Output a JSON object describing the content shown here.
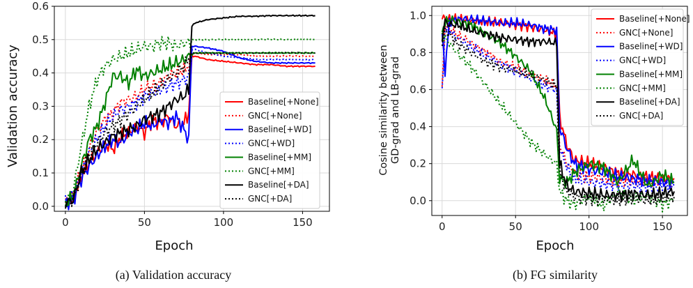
{
  "chart_data": [
    {
      "type": "line",
      "caption": "(a)  Validation accuracy",
      "xlabel": "Epoch",
      "ylabel": "Validation accuracy",
      "xlim": [
        -7,
        167
      ],
      "ylim": [
        -0.015,
        0.6
      ],
      "xticks": [
        0,
        50,
        100,
        150
      ],
      "yticks": [
        0.0,
        0.1,
        0.2,
        0.3,
        0.4,
        0.5,
        0.6
      ],
      "ytick_labels": [
        "0.0",
        "0.1",
        "0.2",
        "0.3",
        "0.4",
        "0.5",
        "0.6"
      ],
      "grid": true,
      "legend_position": "lower-right",
      "series": [
        {
          "name": "Baseline[+None]",
          "color": "#ff0000",
          "style": "solid",
          "final": 0.42,
          "x": [
            0,
            5,
            10,
            15,
            20,
            25,
            30,
            35,
            40,
            45,
            50,
            55,
            60,
            65,
            70,
            75,
            78,
            80,
            82,
            90,
            100,
            110,
            120,
            130,
            140,
            150,
            158
          ],
          "y": [
            0.01,
            0.02,
            0.09,
            0.13,
            0.16,
            0.19,
            0.17,
            0.21,
            0.22,
            0.24,
            0.22,
            0.26,
            0.25,
            0.27,
            0.24,
            0.25,
            0.28,
            0.45,
            0.45,
            0.44,
            0.435,
            0.43,
            0.425,
            0.425,
            0.42,
            0.42,
            0.42
          ]
        },
        {
          "name": "GNC[+None]",
          "color": "#ff0000",
          "style": "dotted",
          "final": 0.45,
          "x": [
            0,
            5,
            10,
            15,
            20,
            25,
            30,
            35,
            40,
            45,
            50,
            55,
            60,
            65,
            70,
            75,
            78,
            80,
            82,
            90,
            100,
            110,
            120,
            130,
            140,
            150,
            158
          ],
          "y": [
            0.01,
            0.03,
            0.11,
            0.17,
            0.23,
            0.26,
            0.28,
            0.31,
            0.32,
            0.33,
            0.35,
            0.36,
            0.37,
            0.39,
            0.4,
            0.41,
            0.42,
            0.45,
            0.46,
            0.455,
            0.455,
            0.455,
            0.45,
            0.45,
            0.45,
            0.45,
            0.45
          ]
        },
        {
          "name": "Baseline[+WD]",
          "color": "#0000ff",
          "style": "solid",
          "final": 0.43,
          "x": [
            0,
            5,
            10,
            15,
            20,
            25,
            30,
            35,
            40,
            45,
            50,
            55,
            60,
            65,
            70,
            75,
            78,
            80,
            82,
            90,
            100,
            110,
            120,
            130,
            140,
            150,
            158
          ],
          "y": [
            0.01,
            0.02,
            0.08,
            0.12,
            0.15,
            0.18,
            0.2,
            0.19,
            0.22,
            0.23,
            0.25,
            0.24,
            0.26,
            0.25,
            0.27,
            0.23,
            0.2,
            0.48,
            0.48,
            0.475,
            0.465,
            0.445,
            0.435,
            0.43,
            0.43,
            0.43,
            0.43
          ]
        },
        {
          "name": "GNC[+WD]",
          "color": "#0000ff",
          "style": "dotted",
          "final": 0.44,
          "x": [
            0,
            5,
            10,
            15,
            20,
            25,
            30,
            35,
            40,
            45,
            50,
            55,
            60,
            65,
            70,
            75,
            78,
            80,
            82,
            90,
            100,
            110,
            120,
            130,
            140,
            150,
            158
          ],
          "y": [
            0.01,
            0.03,
            0.1,
            0.16,
            0.2,
            0.24,
            0.27,
            0.29,
            0.3,
            0.31,
            0.33,
            0.34,
            0.35,
            0.36,
            0.37,
            0.38,
            0.39,
            0.47,
            0.47,
            0.46,
            0.45,
            0.445,
            0.44,
            0.44,
            0.44,
            0.44,
            0.44
          ]
        },
        {
          "name": "Baseline[+MM]",
          "color": "#008000",
          "style": "solid",
          "final": 0.46,
          "x": [
            0,
            5,
            10,
            15,
            20,
            25,
            30,
            35,
            40,
            45,
            50,
            55,
            60,
            65,
            70,
            75,
            78,
            80,
            82,
            90,
            100,
            110,
            120,
            130,
            140,
            150,
            158
          ],
          "y": [
            0.01,
            0.03,
            0.12,
            0.2,
            0.24,
            0.31,
            0.39,
            0.39,
            0.37,
            0.41,
            0.39,
            0.4,
            0.41,
            0.42,
            0.43,
            0.44,
            0.45,
            0.455,
            0.46,
            0.46,
            0.46,
            0.46,
            0.46,
            0.46,
            0.46,
            0.46,
            0.46
          ]
        },
        {
          "name": "GNC[+MM]",
          "color": "#008000",
          "style": "dotted",
          "final": 0.5,
          "x": [
            0,
            5,
            10,
            15,
            20,
            25,
            30,
            35,
            40,
            45,
            50,
            55,
            60,
            65,
            70,
            75,
            78,
            80,
            82,
            90,
            100,
            110,
            120,
            130,
            140,
            150,
            158
          ],
          "y": [
            0.01,
            0.05,
            0.18,
            0.3,
            0.38,
            0.42,
            0.44,
            0.45,
            0.46,
            0.47,
            0.48,
            0.48,
            0.49,
            0.49,
            0.48,
            0.49,
            0.49,
            0.5,
            0.5,
            0.5,
            0.5,
            0.5,
            0.5,
            0.5,
            0.5,
            0.5,
            0.5
          ]
        },
        {
          "name": "Baseline[+DA]",
          "color": "#000000",
          "style": "solid",
          "final": 0.57,
          "x": [
            0,
            5,
            10,
            15,
            20,
            25,
            30,
            35,
            40,
            45,
            50,
            55,
            60,
            65,
            70,
            75,
            78,
            80,
            82,
            90,
            100,
            110,
            120,
            130,
            140,
            150,
            158
          ],
          "y": [
            0.01,
            0.02,
            0.1,
            0.14,
            0.17,
            0.19,
            0.21,
            0.22,
            0.23,
            0.24,
            0.26,
            0.27,
            0.28,
            0.3,
            0.32,
            0.33,
            0.35,
            0.54,
            0.55,
            0.56,
            0.565,
            0.57,
            0.57,
            0.572,
            0.572,
            0.572,
            0.572
          ]
        },
        {
          "name": "GNC[+DA]",
          "color": "#000000",
          "style": "dotted",
          "final": 0.46,
          "x": [
            0,
            5,
            10,
            15,
            20,
            25,
            30,
            35,
            40,
            45,
            50,
            55,
            60,
            65,
            70,
            75,
            78,
            80,
            82,
            90,
            100,
            110,
            120,
            130,
            140,
            150,
            158
          ],
          "y": [
            0.01,
            0.02,
            0.1,
            0.15,
            0.19,
            0.22,
            0.24,
            0.26,
            0.28,
            0.3,
            0.32,
            0.34,
            0.36,
            0.38,
            0.4,
            0.42,
            0.44,
            0.46,
            0.46,
            0.46,
            0.46,
            0.46,
            0.46,
            0.46,
            0.46,
            0.46,
            0.46
          ]
        }
      ]
    },
    {
      "type": "line",
      "caption": "(b)  FG similarity",
      "xlabel": "Epoch",
      "ylabel_lines": [
        "Cosine similarity between",
        "GD-grad and LB-grad"
      ],
      "xlim": [
        -7,
        167
      ],
      "ylim": [
        -0.08,
        1.05
      ],
      "xticks": [
        0,
        50,
        100,
        150
      ],
      "yticks": [
        0.0,
        0.2,
        0.4,
        0.6,
        0.8,
        1.0
      ],
      "ytick_labels": [
        "0.0",
        "0.2",
        "0.4",
        "0.6",
        "0.8",
        "1.0"
      ],
      "grid": true,
      "legend_position": "upper-right",
      "series": [
        {
          "name": "Baseline[+None]",
          "color": "#ff0000",
          "style": "solid",
          "x": [
            0,
            2,
            5,
            10,
            20,
            30,
            40,
            50,
            60,
            70,
            78,
            80,
            85,
            90,
            100,
            110,
            120,
            130,
            140,
            150,
            158
          ],
          "y": [
            0.98,
            0.99,
            0.98,
            0.98,
            0.97,
            0.97,
            0.96,
            0.95,
            0.94,
            0.92,
            0.9,
            0.45,
            0.3,
            0.22,
            0.2,
            0.18,
            0.15,
            0.14,
            0.13,
            0.12,
            0.12
          ]
        },
        {
          "name": "GNC[+None]",
          "color": "#ff0000",
          "style": "dotted",
          "x": [
            0,
            2,
            5,
            10,
            20,
            30,
            40,
            50,
            60,
            70,
            78,
            80,
            85,
            90,
            100,
            110,
            120,
            130,
            140,
            150,
            158
          ],
          "y": [
            0.6,
            0.95,
            0.93,
            0.9,
            0.85,
            0.8,
            0.75,
            0.72,
            0.68,
            0.65,
            0.62,
            0.3,
            0.2,
            0.15,
            0.13,
            0.12,
            0.11,
            0.1,
            0.1,
            0.1,
            0.1
          ]
        },
        {
          "name": "Baseline[+WD]",
          "color": "#0000ff",
          "style": "solid",
          "x": [
            0,
            2,
            5,
            10,
            20,
            30,
            40,
            50,
            60,
            70,
            78,
            80,
            85,
            90,
            100,
            110,
            120,
            130,
            140,
            150,
            158
          ],
          "y": [
            0.9,
            0.7,
            0.97,
            0.98,
            0.98,
            0.97,
            0.96,
            0.96,
            0.95,
            0.93,
            0.92,
            0.4,
            0.28,
            0.2,
            0.17,
            0.15,
            0.13,
            0.12,
            0.11,
            0.1,
            0.1
          ]
        },
        {
          "name": "GNC[+WD]",
          "color": "#0000ff",
          "style": "dotted",
          "x": [
            0,
            2,
            5,
            10,
            20,
            30,
            40,
            50,
            60,
            70,
            78,
            80,
            85,
            90,
            100,
            110,
            120,
            130,
            140,
            150,
            158
          ],
          "y": [
            0.58,
            0.93,
            0.92,
            0.88,
            0.83,
            0.78,
            0.74,
            0.7,
            0.66,
            0.62,
            0.6,
            0.28,
            0.18,
            0.12,
            0.1,
            0.09,
            0.08,
            0.08,
            0.07,
            0.07,
            0.07
          ]
        },
        {
          "name": "Baseline[+MM]",
          "color": "#008000",
          "style": "solid",
          "x": [
            0,
            2,
            5,
            10,
            20,
            30,
            40,
            50,
            60,
            70,
            78,
            80,
            85,
            90,
            100,
            110,
            120,
            130,
            140,
            150,
            158
          ],
          "y": [
            0.92,
            0.96,
            0.98,
            0.97,
            0.95,
            0.9,
            0.85,
            0.78,
            0.7,
            0.55,
            0.38,
            0.12,
            0.1,
            0.15,
            0.2,
            0.18,
            0.1,
            0.22,
            0.08,
            0.14,
            0.1
          ]
        },
        {
          "name": "GNC[+MM]",
          "color": "#008000",
          "style": "dotted",
          "x": [
            0,
            2,
            5,
            10,
            20,
            30,
            40,
            50,
            60,
            70,
            78,
            80,
            85,
            90,
            100,
            110,
            120,
            130,
            140,
            150,
            158
          ],
          "y": [
            0.9,
            0.88,
            0.85,
            0.8,
            0.72,
            0.62,
            0.52,
            0.42,
            0.32,
            0.25,
            0.2,
            0.05,
            0.0,
            -0.02,
            0.02,
            -0.03,
            0.05,
            0.0,
            0.03,
            -0.02,
            0.0
          ]
        },
        {
          "name": "Baseline[+DA]",
          "color": "#000000",
          "style": "solid",
          "x": [
            0,
            2,
            5,
            10,
            20,
            30,
            40,
            50,
            60,
            70,
            78,
            80,
            85,
            90,
            100,
            110,
            120,
            130,
            140,
            150,
            158
          ],
          "y": [
            0.88,
            0.97,
            0.95,
            0.95,
            0.92,
            0.9,
            0.88,
            0.87,
            0.86,
            0.86,
            0.85,
            0.2,
            0.08,
            0.05,
            0.04,
            0.03,
            0.03,
            0.04,
            0.03,
            0.04,
            0.05
          ]
        },
        {
          "name": "GNC[+DA]",
          "color": "#000000",
          "style": "dotted",
          "x": [
            0,
            2,
            5,
            10,
            20,
            30,
            40,
            50,
            60,
            70,
            78,
            80,
            85,
            90,
            100,
            110,
            120,
            130,
            140,
            150,
            158
          ],
          "y": [
            0.85,
            0.92,
            0.9,
            0.85,
            0.8,
            0.75,
            0.72,
            0.7,
            0.68,
            0.65,
            0.62,
            0.15,
            0.05,
            0.02,
            0.01,
            0.01,
            0.0,
            0.01,
            0.0,
            0.01,
            0.02
          ]
        }
      ]
    }
  ]
}
